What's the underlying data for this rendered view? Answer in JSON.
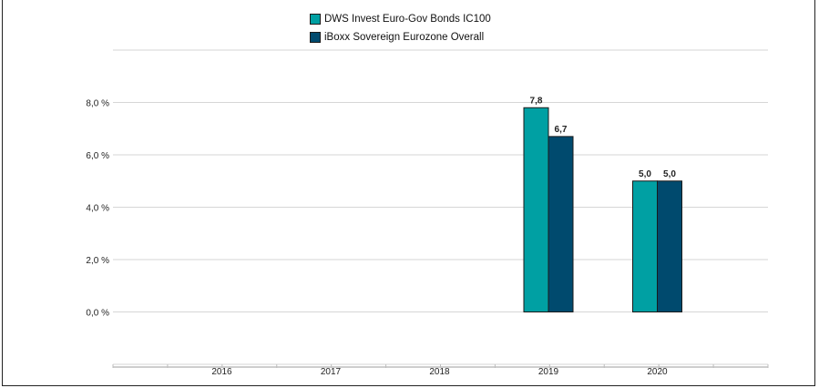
{
  "chart_data": {
    "type": "bar",
    "categories": [
      "2016",
      "2017",
      "2018",
      "2019",
      "2020"
    ],
    "series": [
      {
        "name": "DWS Invest Euro-Gov Bonds  IC100",
        "color": "#00a0a3",
        "values": [
          null,
          null,
          null,
          7.8,
          5.0
        ],
        "labels": [
          "",
          "",
          "",
          "7,8",
          "5,0"
        ]
      },
      {
        "name": "iBoxx Sovereign Eurozone Overall",
        "color": "#004a6e",
        "values": [
          null,
          null,
          null,
          6.7,
          5.0
        ],
        "labels": [
          "",
          "",
          "",
          "6,7",
          "5,0"
        ]
      }
    ],
    "yticks": [
      0,
      2,
      4,
      6,
      8
    ],
    "ytick_labels": [
      "0,0 %",
      "2,0 %",
      "4,0 %",
      "6,0 %",
      "8,0 %"
    ],
    "ylim": [
      -2,
      10
    ],
    "grid": true,
    "legend_position": "top-center"
  }
}
